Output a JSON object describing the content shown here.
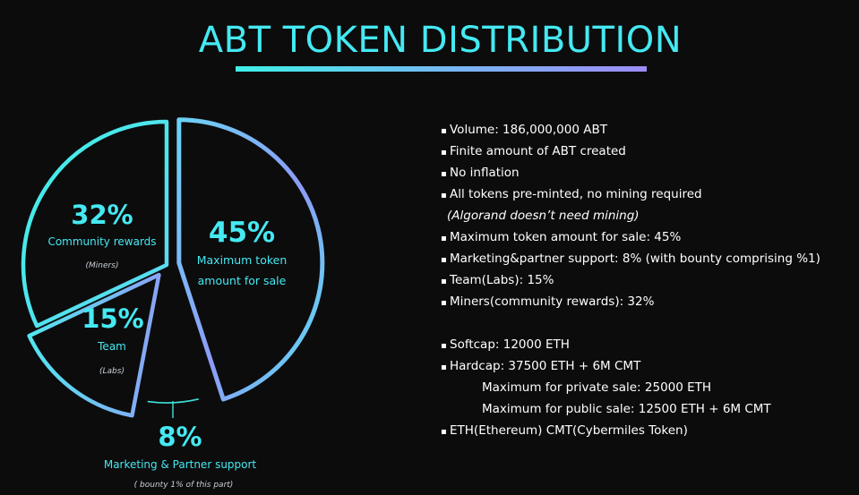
{
  "title": "ABT TOKEN DISTRIBUTION",
  "colors": {
    "background": "#0c0c0d",
    "accent_cyan": "#45e9f2",
    "accent_purple": "#9d8cf6",
    "text": "#ffffff"
  },
  "chart_data": {
    "type": "pie",
    "title": "ABT TOKEN DISTRIBUTION",
    "slices": [
      {
        "percent_label": "45%",
        "label": "Maximum token amount for sale",
        "note": "",
        "value": 45,
        "exploded": true
      },
      {
        "percent_label": "8%",
        "label": "Marketing & Partner support",
        "note": "( bounty 1% of this part)",
        "value": 8,
        "exploded": false
      },
      {
        "percent_label": "15%",
        "label": "Team",
        "note": "(Labs)",
        "value": 15,
        "exploded": true
      },
      {
        "percent_label": "32%",
        "label": "Community rewards",
        "note": "(Miners)",
        "value": 32,
        "exploded": false
      }
    ]
  },
  "bullets": [
    {
      "text": "Volume: 186,000,000 ABT",
      "kind": "item"
    },
    {
      "text": "Finite amount of ABT created",
      "kind": "item"
    },
    {
      "text": "No inflation",
      "kind": "item"
    },
    {
      "text": "All tokens pre-minted, no mining required",
      "kind": "item"
    },
    {
      "text": "(Algorand doesn’t need mining)",
      "kind": "note"
    },
    {
      "text": "Maximum token amount for sale: 45%",
      "kind": "item"
    },
    {
      "text": "Marketing&partner support: 8% (with bounty comprising %1)",
      "kind": "item"
    },
    {
      "text": "Team(Labs): 15%",
      "kind": "item"
    },
    {
      "text": "Miners(community rewards): 32%",
      "kind": "item"
    },
    {
      "text": "",
      "kind": "gap"
    },
    {
      "text": "Softcap: 12000 ETH",
      "kind": "item"
    },
    {
      "text": "Hardcap: 37500 ETH + 6M CMT",
      "kind": "item"
    },
    {
      "text": "Maximum for private sale: 25000 ETH",
      "kind": "sub"
    },
    {
      "text": "Maximum for public sale: 12500 ETH + 6M CMT",
      "kind": "sub"
    },
    {
      "text": "ETH(Ethereum) CMT(Cybermiles Token)",
      "kind": "item"
    }
  ]
}
